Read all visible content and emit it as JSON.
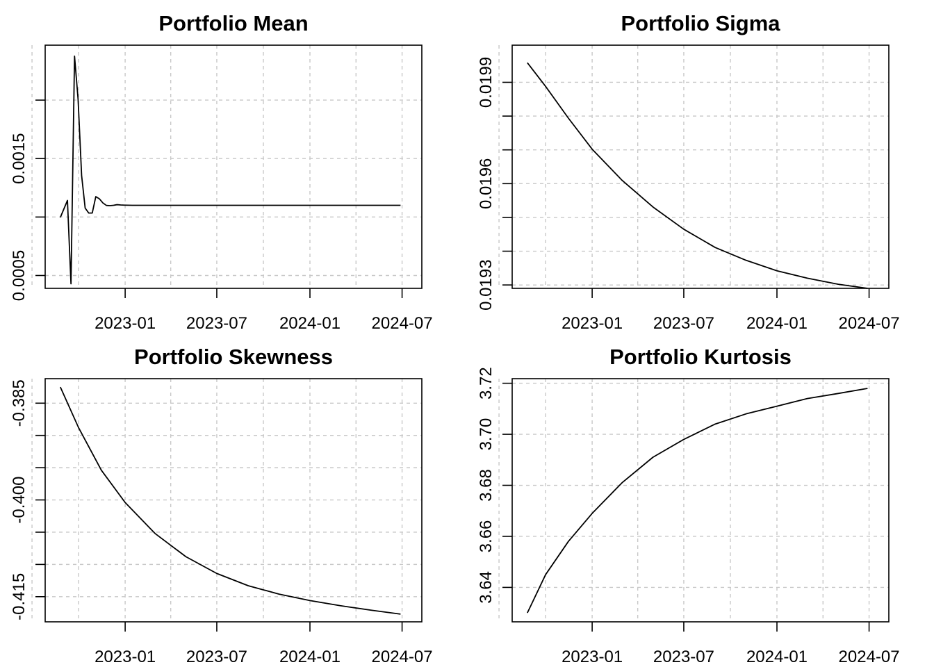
{
  "chart_data": [
    {
      "type": "line",
      "title": "Portfolio Mean",
      "xlabel": "",
      "ylabel": "",
      "x_ticks": [
        "2023-01-01",
        "2023-07-01",
        "2024-01-01",
        "2024-07-01"
      ],
      "x_tick_labels": [
        "2023-01",
        "2023-07",
        "2024-01",
        "2024-07"
      ],
      "x_grid": [
        "2022-07-01",
        "2022-10-01",
        "2023-01-01",
        "2023-04-01",
        "2023-07-01",
        "2023-10-01",
        "2024-01-01",
        "2024-04-01",
        "2024-07-01"
      ],
      "xlim": [
        "2022-07-27",
        "2024-08-09"
      ],
      "y_ticks": [
        0.0005,
        0.001,
        0.0015,
        0.002
      ],
      "y_tick_labels": [
        "0.0005",
        "",
        "0.0015",
        ""
      ],
      "ylim": [
        0.00039,
        0.00247
      ],
      "grid": true,
      "x": [
        "2022-08-26",
        "2022-09-09",
        "2022-09-16",
        "2022-09-23",
        "2022-09-30",
        "2022-10-07",
        "2022-10-14",
        "2022-10-21",
        "2022-10-28",
        "2022-11-04",
        "2022-11-11",
        "2022-11-18",
        "2022-11-25",
        "2022-12-02",
        "2022-12-09",
        "2022-12-16",
        "2022-12-23",
        "2022-12-30",
        "2023-01-15",
        "2023-03-01",
        "2023-06-01",
        "2023-09-01",
        "2023-12-01",
        "2024-03-01",
        "2024-06-01",
        "2024-06-28"
      ],
      "y": [
        0.0009968,
        0.0011418,
        0.0004286,
        0.0023759,
        0.0020083,
        0.0013547,
        0.0010766,
        0.0010342,
        0.0010342,
        0.0011743,
        0.0011561,
        0.0011206,
        0.001099,
        0.001097,
        0.0011002,
        0.0011057,
        0.0011032,
        0.0011018,
        0.0011,
        0.0011,
        0.0011,
        0.0011,
        0.0011,
        0.0011,
        0.0011,
        0.0011
      ]
    },
    {
      "type": "line",
      "title": "Portfolio Sigma",
      "xlabel": "",
      "ylabel": "",
      "x_ticks": [
        "2023-01-01",
        "2023-07-01",
        "2024-01-01",
        "2024-07-01"
      ],
      "x_tick_labels": [
        "2023-01",
        "2023-07",
        "2024-01",
        "2024-07"
      ],
      "x_grid": [
        "2022-07-01",
        "2022-10-01",
        "2023-01-01",
        "2023-04-01",
        "2023-07-01",
        "2023-10-01",
        "2024-01-01",
        "2024-04-01",
        "2024-07-01"
      ],
      "xlim": [
        "2022-07-27",
        "2024-08-09"
      ],
      "y_ticks": [
        0.0193,
        0.0194,
        0.0195,
        0.0196,
        0.0197,
        0.0198,
        0.0199
      ],
      "y_tick_labels": [
        "0.0193",
        "",
        "",
        "0.0196",
        "",
        "",
        "0.0199"
      ],
      "ylim": [
        0.01929,
        0.02001
      ],
      "grid": true,
      "x": [
        "2022-08-26",
        "2022-10-01",
        "2022-11-15",
        "2023-01-01",
        "2023-03-01",
        "2023-05-01",
        "2023-07-01",
        "2023-09-01",
        "2023-11-01",
        "2024-01-01",
        "2024-03-01",
        "2024-05-01",
        "2024-06-28"
      ],
      "y": [
        0.019958,
        0.019888,
        0.019794,
        0.019702,
        0.01961,
        0.019531,
        0.019465,
        0.019411,
        0.019373,
        0.019342,
        0.01932,
        0.019302,
        0.01929
      ]
    },
    {
      "type": "line",
      "title": "Portfolio Skewness",
      "xlabel": "",
      "ylabel": "",
      "x_ticks": [
        "2023-01-01",
        "2023-07-01",
        "2024-01-01",
        "2024-07-01"
      ],
      "x_tick_labels": [
        "2023-01",
        "2023-07",
        "2024-01",
        "2024-07"
      ],
      "x_grid": [
        "2022-07-01",
        "2022-10-01",
        "2023-01-01",
        "2023-04-01",
        "2023-07-01",
        "2023-10-01",
        "2024-01-01",
        "2024-04-01",
        "2024-07-01"
      ],
      "xlim": [
        "2022-07-27",
        "2024-08-09"
      ],
      "y_ticks": [
        -0.415,
        -0.41,
        -0.405,
        -0.4,
        -0.395,
        -0.39,
        -0.385
      ],
      "y_tick_labels": [
        "-0.415",
        "",
        "",
        "-0.400",
        "",
        "",
        "-0.385"
      ],
      "ylim": [
        -0.4189,
        -0.3812
      ],
      "grid": true,
      "x": [
        "2022-08-26",
        "2022-10-01",
        "2022-11-15",
        "2023-01-01",
        "2023-03-01",
        "2023-05-01",
        "2023-07-01",
        "2023-09-01",
        "2023-11-01",
        "2024-01-01",
        "2024-03-01",
        "2024-05-01",
        "2024-06-28"
      ],
      "y": [
        -0.3825,
        -0.3888,
        -0.3954,
        -0.4004,
        -0.4052,
        -0.4088,
        -0.4114,
        -0.4133,
        -0.4146,
        -0.4156,
        -0.4164,
        -0.4171,
        -0.4177
      ]
    },
    {
      "type": "line",
      "title": "Portfolio Kurtosis",
      "xlabel": "",
      "ylabel": "",
      "x_ticks": [
        "2023-01-01",
        "2023-07-01",
        "2024-01-01",
        "2024-07-01"
      ],
      "x_tick_labels": [
        "2023-01",
        "2023-07",
        "2024-01",
        "2024-07"
      ],
      "x_grid": [
        "2022-07-01",
        "2022-10-01",
        "2023-01-01",
        "2023-04-01",
        "2023-07-01",
        "2023-10-01",
        "2024-01-01",
        "2024-04-01",
        "2024-07-01"
      ],
      "xlim": [
        "2022-07-27",
        "2024-08-09"
      ],
      "y_ticks": [
        3.64,
        3.66,
        3.68,
        3.7,
        3.72
      ],
      "y_tick_labels": [
        "3.64",
        "3.66",
        "3.68",
        "3.70",
        "3.72"
      ],
      "ylim": [
        3.6265,
        3.7218
      ],
      "grid": true,
      "x": [
        "2022-08-26",
        "2022-10-01",
        "2022-11-15",
        "2023-01-01",
        "2023-03-01",
        "2023-05-01",
        "2023-07-01",
        "2023-09-01",
        "2023-11-01",
        "2024-01-01",
        "2024-03-01",
        "2024-05-01",
        "2024-06-28"
      ],
      "y": [
        3.63,
        3.645,
        3.658,
        3.669,
        3.681,
        3.691,
        3.698,
        3.704,
        3.708,
        3.711,
        3.714,
        3.716,
        3.718
      ]
    }
  ]
}
